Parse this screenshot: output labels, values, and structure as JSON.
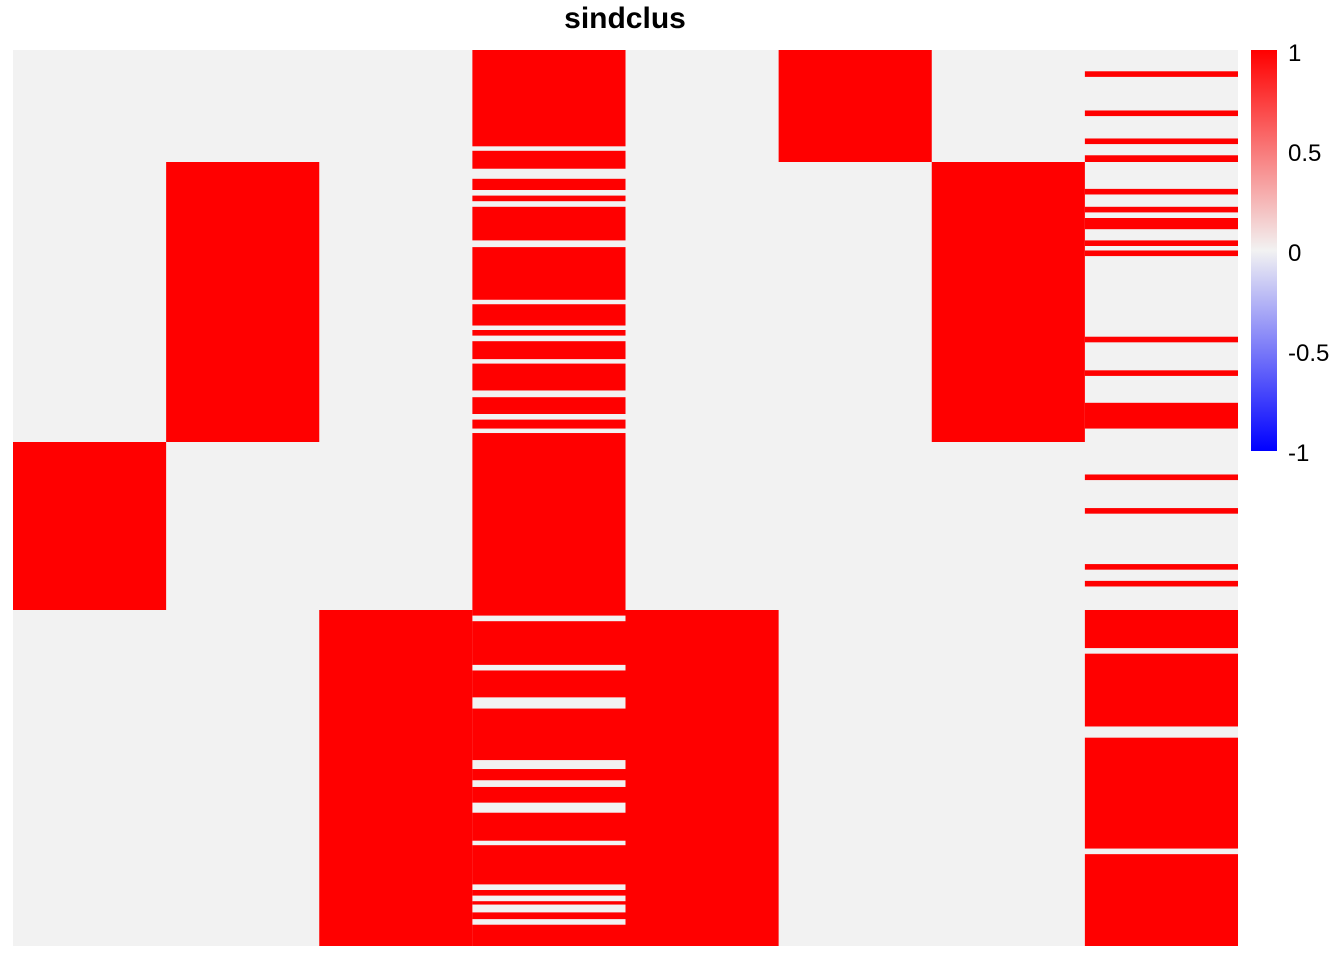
{
  "chart_data": {
    "type": "heatmap",
    "title": "sindclus",
    "n_rows": 80,
    "n_cols": 8,
    "value_range": [
      -1,
      1
    ],
    "colors": {
      "high": "#ff0000",
      "mid": "#f2f2f2",
      "low": "#0000ff"
    },
    "legend": {
      "position": "right",
      "ticks": [
        "1",
        "0.5",
        "0",
        "-0.5",
        "-1"
      ],
      "tick_values": [
        1,
        0.5,
        0,
        -0.5,
        -1
      ]
    },
    "columns": [
      {
        "runs": [
          [
            35,
            50
          ]
        ]
      },
      {
        "runs": [
          [
            10,
            35
          ]
        ]
      },
      {
        "runs": [
          [
            50,
            80
          ]
        ]
      },
      {
        "runs": [
          [
            0,
            8.6
          ],
          [
            9,
            10.6
          ],
          [
            11.5,
            12.5
          ],
          [
            13,
            13.5
          ],
          [
            14,
            17
          ],
          [
            17.6,
            22.3
          ],
          [
            22.7,
            24.6
          ],
          [
            25,
            25.5
          ],
          [
            26,
            27.6
          ],
          [
            28,
            30.4
          ],
          [
            31,
            32.5
          ],
          [
            33,
            33.8
          ],
          [
            34.2,
            50.5
          ],
          [
            51,
            54.9
          ],
          [
            55.4,
            57.8
          ],
          [
            58.8,
            63.4
          ],
          [
            64.2,
            65.2
          ],
          [
            65.8,
            67.2
          ],
          [
            68.1,
            70.6
          ],
          [
            71,
            74.5
          ],
          [
            75,
            75.5
          ],
          [
            76,
            76.3
          ],
          [
            77,
            77.6
          ],
          [
            78.1,
            80
          ]
        ]
      },
      {
        "runs": [
          [
            50,
            80
          ]
        ]
      },
      {
        "runs": [
          [
            0,
            10
          ]
        ]
      },
      {
        "runs": [
          [
            10,
            35
          ]
        ]
      },
      {
        "runs": [
          [
            1.9,
            2.4
          ],
          [
            5.4,
            5.9
          ],
          [
            7.9,
            8.4
          ],
          [
            9.4,
            10
          ],
          [
            12.4,
            12.9
          ],
          [
            14,
            14.5
          ],
          [
            15,
            16
          ],
          [
            17,
            17.5
          ],
          [
            17.9,
            18.4
          ],
          [
            25.6,
            26.1
          ],
          [
            28.6,
            29.1
          ],
          [
            31.5,
            33.8
          ],
          [
            37.9,
            38.4
          ],
          [
            40.9,
            41.4
          ],
          [
            45.9,
            46.4
          ],
          [
            47.4,
            47.9
          ],
          [
            50,
            53.4
          ],
          [
            53.9,
            60.4
          ],
          [
            61.4,
            71.3
          ],
          [
            71.8,
            80
          ]
        ]
      }
    ]
  }
}
